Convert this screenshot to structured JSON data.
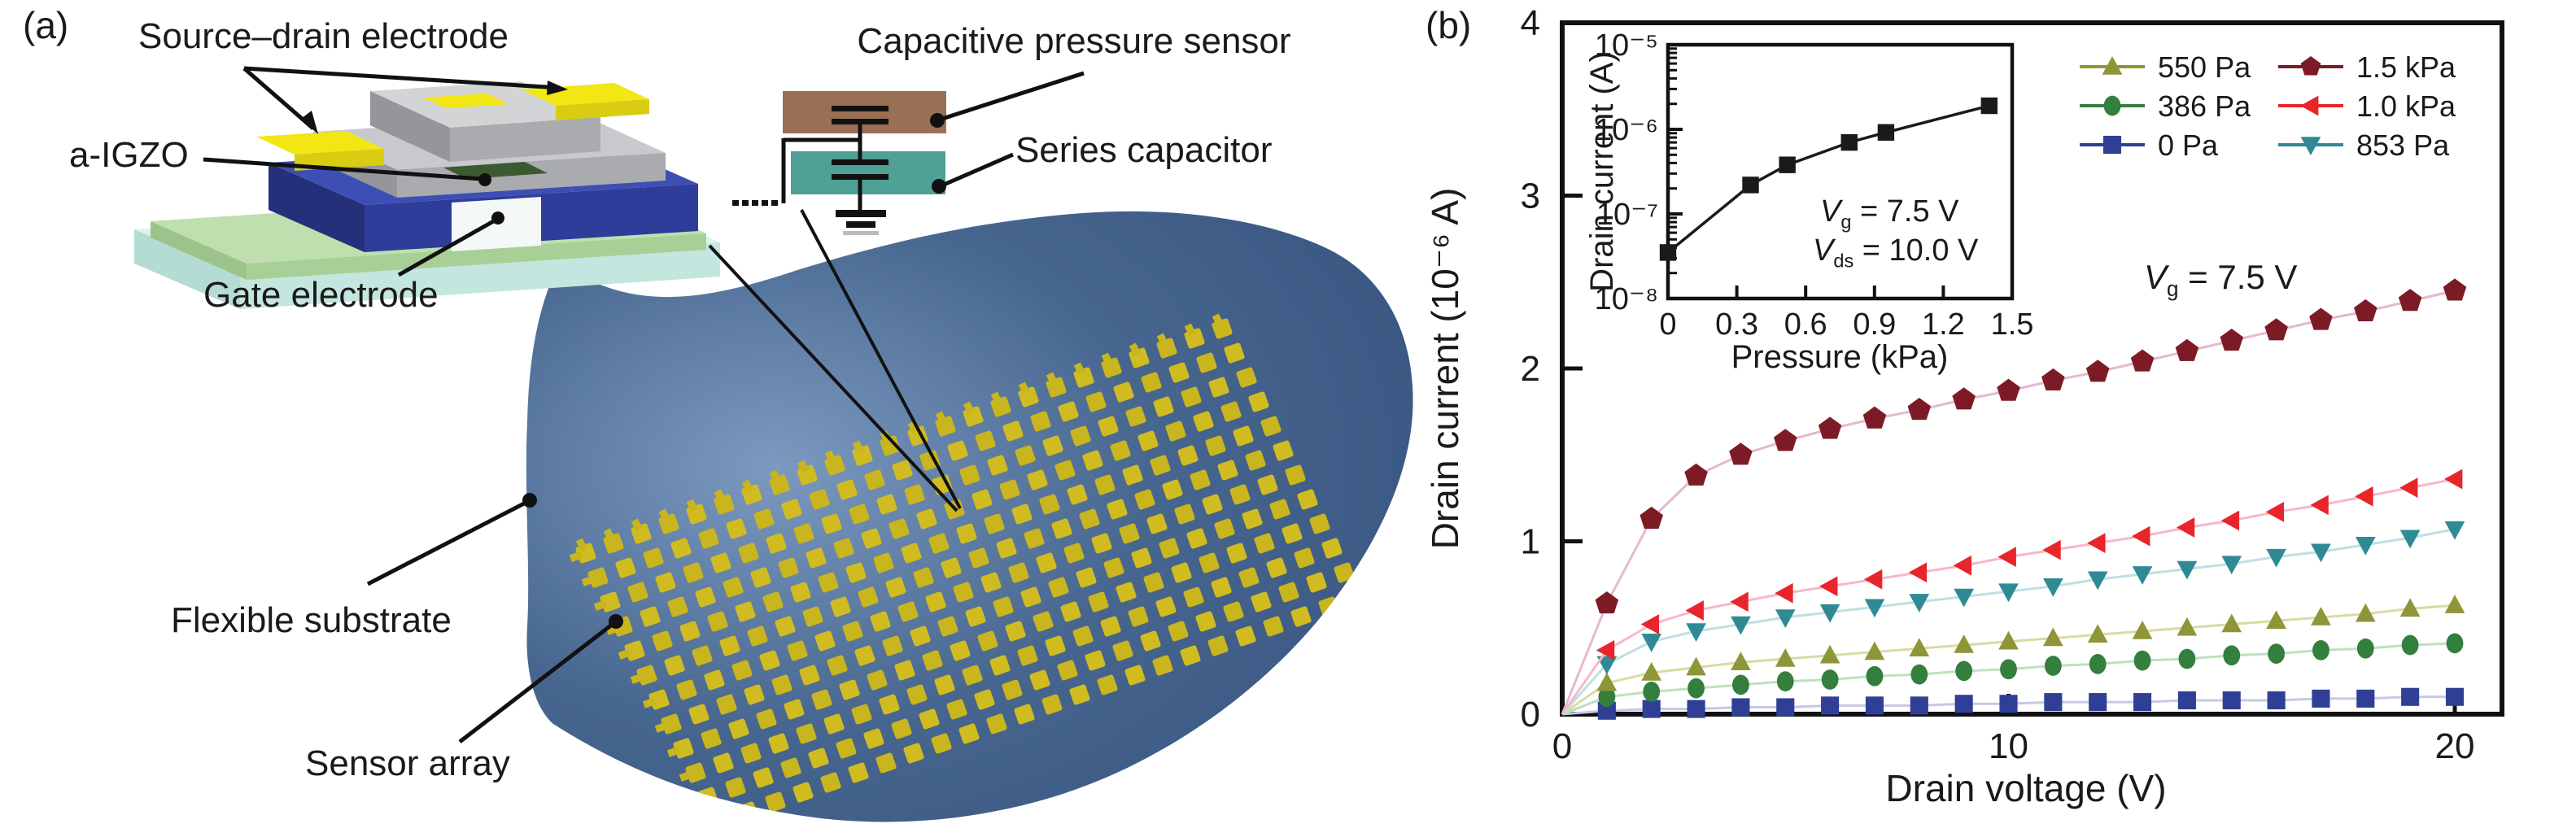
{
  "figure": {
    "panel_a": {
      "tag": "(a)",
      "labels": {
        "source_drain": "Source–drain electrode",
        "a_igzo": "a-IGZO",
        "gate": "Gate electrode",
        "capacitive": "Capacitive pressure sensor",
        "series_cap": "Series capacitor",
        "flexible": "Flexible substrate",
        "sensor_array": "Sensor array"
      },
      "colors": {
        "electrode_yellow": "#f2e614",
        "igzo_green": "#3a5a31",
        "insulator_blue": "#2e3d99",
        "metal_gray": "#c7c9cc",
        "mint_layer": "#bfdfaf",
        "base_aqua": "#ddf2ec",
        "pressure_sensor_brown": "#9a7055",
        "series_capacitor_teal": "#4fa196",
        "substrate_blue": "#47668f",
        "array_yellow": "#c9b51d",
        "label_ink": "#1a1a1a"
      }
    },
    "panel_b": {
      "tag": "(b)"
    }
  },
  "chart_data": [
    {
      "id": "main-output-curves",
      "type": "line",
      "title": "",
      "xlabel": "Drain voltage (V)",
      "ylabel": "Drain current (10⁻⁶ A)",
      "xlim": [
        0,
        20
      ],
      "ylim": [
        0,
        4
      ],
      "xticks": [
        0,
        10,
        20
      ],
      "yticks": [
        0,
        1,
        2,
        3,
        4
      ],
      "grid": false,
      "legend_position": "top-right",
      "legend_columns": [
        [
          "550 Pa",
          "386 Pa",
          "0 Pa"
        ],
        [
          "1.5 kPa",
          "1.0 kPa",
          "853 Pa"
        ]
      ],
      "annotation": {
        "pre": "V",
        "sub": "g",
        "post": " = 7.5 V"
      },
      "x": [
        0,
        1,
        2,
        3,
        4,
        5,
        6,
        7,
        8,
        9,
        10,
        11,
        12,
        13,
        14,
        15,
        16,
        17,
        18,
        19,
        20
      ],
      "series": [
        {
          "name": "0 Pa",
          "marker": "square",
          "color": "#303f96",
          "line_color": "#c7c7e6",
          "values": [
            0,
            0.02,
            0.03,
            0.03,
            0.04,
            0.04,
            0.05,
            0.05,
            0.05,
            0.06,
            0.06,
            0.07,
            0.07,
            0.07,
            0.08,
            0.08,
            0.08,
            0.09,
            0.09,
            0.1,
            0.1
          ]
        },
        {
          "name": "386 Pa",
          "marker": "circle",
          "color": "#347e3e",
          "line_color": "#bfe0c0",
          "values": [
            0,
            0.1,
            0.13,
            0.15,
            0.17,
            0.19,
            0.2,
            0.22,
            0.23,
            0.25,
            0.26,
            0.28,
            0.29,
            0.31,
            0.32,
            0.34,
            0.35,
            0.37,
            0.38,
            0.4,
            0.41
          ]
        },
        {
          "name": "550 Pa",
          "marker": "triangle-up",
          "color": "#8e9638",
          "line_color": "#d9dba3",
          "values": [
            0,
            0.18,
            0.24,
            0.27,
            0.3,
            0.32,
            0.34,
            0.36,
            0.38,
            0.4,
            0.42,
            0.44,
            0.46,
            0.48,
            0.5,
            0.52,
            0.54,
            0.56,
            0.58,
            0.61,
            0.63
          ]
        },
        {
          "name": "853 Pa",
          "marker": "triangle-down",
          "color": "#2f8a96",
          "line_color": "#bee0e2",
          "values": [
            0,
            0.29,
            0.42,
            0.48,
            0.52,
            0.56,
            0.59,
            0.62,
            0.65,
            0.68,
            0.71,
            0.74,
            0.78,
            0.81,
            0.84,
            0.87,
            0.91,
            0.94,
            0.98,
            1.02,
            1.07
          ]
        },
        {
          "name": "1.0 kPa",
          "marker": "triangle-left",
          "color": "#e8252b",
          "line_color": "#f6b8c8",
          "values": [
            0,
            0.37,
            0.52,
            0.6,
            0.65,
            0.7,
            0.74,
            0.78,
            0.82,
            0.86,
            0.91,
            0.95,
            0.99,
            1.03,
            1.08,
            1.12,
            1.17,
            1.21,
            1.26,
            1.31,
            1.36
          ]
        },
        {
          "name": "1.5 kPa",
          "marker": "pentagon",
          "color": "#7c1b26",
          "line_color": "#e5b9d0",
          "values": [
            0,
            0.64,
            1.13,
            1.38,
            1.5,
            1.58,
            1.65,
            1.71,
            1.76,
            1.82,
            1.87,
            1.93,
            1.98,
            2.04,
            2.1,
            2.16,
            2.22,
            2.28,
            2.33,
            2.39,
            2.45
          ]
        }
      ]
    },
    {
      "id": "inset-pressure-response",
      "type": "line",
      "xlabel": "Pressure (kPa)",
      "ylabel": "Drain current (A)",
      "xlim": [
        0,
        1.5
      ],
      "yscale": "log",
      "xticks": [
        0,
        0.3,
        0.6,
        0.9,
        1.2,
        1.5
      ],
      "yticks": [
        {
          "label": "10⁻⁵",
          "exp": -5
        },
        {
          "label": "10⁻⁶",
          "exp": -6
        },
        {
          "label": "10⁻⁷",
          "exp": -7
        },
        {
          "label": "10⁻⁸",
          "exp": -8
        }
      ],
      "annotations": [
        {
          "pre": "V",
          "sub": "g",
          "post": " = 7.5 V"
        },
        {
          "pre": "V",
          "sub": "ds",
          "post": " = 10.0 V"
        }
      ],
      "marker": "square",
      "color": "#1a1a1a",
      "points": [
        [
          0,
          3.5e-08
        ],
        [
          0.36,
          2.2e-07
        ],
        [
          0.52,
          3.8e-07
        ],
        [
          0.79,
          7e-07
        ],
        [
          0.95,
          9.2e-07
        ],
        [
          1.4,
          1.9e-06
        ]
      ]
    }
  ]
}
